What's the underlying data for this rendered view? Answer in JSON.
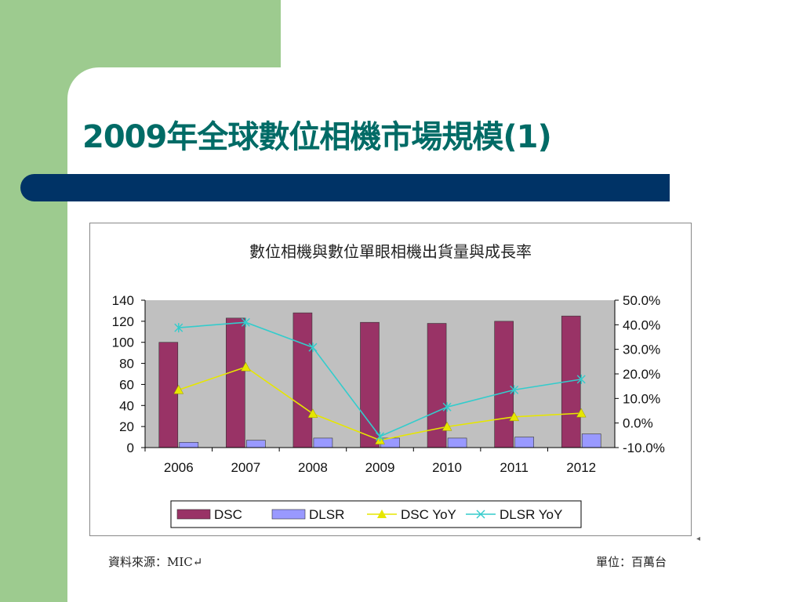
{
  "slide": {
    "title": "2009年全球數位相機市場規模(1)",
    "source_note": "資料來源：MIC↵",
    "unit_note": "單位：百萬台"
  },
  "colors": {
    "background_green": "#9dcb8f",
    "title_color": "#006b66",
    "title_bar": "#003366",
    "dsc_bar": "#993366",
    "dlsr_bar": "#9999ff",
    "dsc_yoy_line": "#e6e600",
    "dlsr_yoy_line": "#33cccc",
    "plot_bg": "#c0c0c0"
  },
  "chart_data": {
    "type": "bar",
    "title": "數位相機與數位單眼相機出貨量與成長率",
    "categories": [
      "2006",
      "2007",
      "2008",
      "2009",
      "2010",
      "2011",
      "2012"
    ],
    "ylim": [
      0,
      140
    ],
    "y_ticks": [
      "140",
      "120",
      "100",
      "80",
      "60",
      "40",
      "20",
      "0"
    ],
    "y2lim": [
      -10,
      50
    ],
    "y2_ticks": [
      "50.0%",
      "40.0%",
      "30.0%",
      "20.0%",
      "10.0%",
      "0.0%",
      "-10.0%"
    ],
    "series": [
      {
        "name": "DSC",
        "type": "bar",
        "axis": "left",
        "values": [
          100,
          123,
          128,
          119,
          118,
          120,
          125
        ]
      },
      {
        "name": "DLSR",
        "type": "bar",
        "axis": "left",
        "values": [
          5,
          7,
          9,
          9,
          9,
          10,
          13
        ]
      },
      {
        "name": "DSC YoY",
        "type": "line",
        "axis": "right",
        "values": [
          13.5,
          22.8,
          3.8,
          -7.0,
          -1.5,
          2.5,
          4.0
        ]
      },
      {
        "name": "DLSR YoY",
        "type": "line",
        "axis": "right",
        "values": [
          38.8,
          41.0,
          30.8,
          -5.5,
          6.5,
          13.5,
          17.8
        ]
      }
    ],
    "legend": [
      "DSC",
      "DLSR",
      "DSC YoY",
      "DLSR YoY"
    ],
    "legend_position": "bottom",
    "grid": false
  }
}
